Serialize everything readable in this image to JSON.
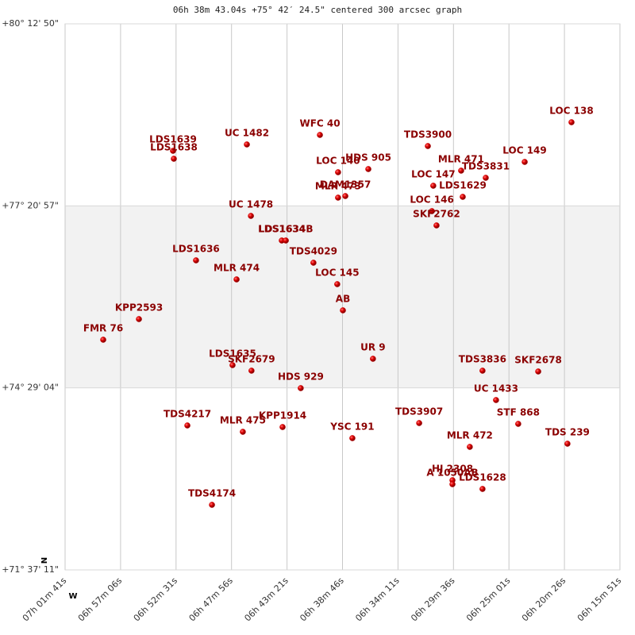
{
  "chart_data": {
    "type": "scatter",
    "title": "06h 38m 43.04s +75° 42′ 24.5\" centered 300 arcsec graph",
    "axis_markers": {
      "x": "W",
      "y": "N"
    },
    "color": "#cc0000",
    "label_color": "#8b0000",
    "grid": true,
    "xlim": [
      25301,
      22551
    ],
    "ylim": [
      257831,
      288770
    ],
    "xticks": [
      {
        "value": 25301,
        "label": "07h 01m 41s"
      },
      {
        "value": 25026,
        "label": "06h 57m 06s"
      },
      {
        "value": 24751,
        "label": "06h 52m 31s"
      },
      {
        "value": 24476,
        "label": "06h 47m 56s"
      },
      {
        "value": 24201,
        "label": "06h 43m 21s"
      },
      {
        "value": 23926,
        "label": "06h 38m 46s"
      },
      {
        "value": 23651,
        "label": "06h 34m 11s"
      },
      {
        "value": 23376,
        "label": "06h 29m 36s"
      },
      {
        "value": 23101,
        "label": "06h 25m 01s"
      },
      {
        "value": 22826,
        "label": "06h 20m 26s"
      },
      {
        "value": 22551,
        "label": "06h 15m 51s"
      }
    ],
    "yticks": [
      {
        "value": 257831,
        "label": "+71° 37' 11\""
      },
      {
        "value": 268144,
        "label": "+74° 29' 04\""
      },
      {
        "value": 278457,
        "label": "+77° 20' 57\""
      },
      {
        "value": 288770,
        "label": "+80° 12' 50\""
      }
    ],
    "point_labels": [
      "LOC 138",
      "WFC  40",
      "UC 1482",
      "LDS1639",
      "LDS1638",
      "TDS3900",
      "LOC 149",
      "HDS 905",
      "MLR 471",
      "LOC 140",
      "TDS3831",
      "LOC 147",
      "DAM1357",
      "MLR 473",
      "LDS1629",
      "LOC 146",
      "UC 1478",
      "SKF2762",
      "LDS1634",
      "LDS1634B",
      "TDS4029",
      "LDS1636",
      "MLR 474",
      "LOC 145",
      "AB",
      "KPP2593",
      "FMR  76",
      "UR   9",
      "LDS1635",
      "SKF2679",
      "TDS3836",
      "SKF2678",
      "HDS 929",
      "UC 1433",
      "TDS4217",
      "TDS3907",
      "STF 868",
      "MLR 475",
      "KPP1914",
      "YSC 191",
      "MLR 472",
      "TDS 239",
      "HJ 2308",
      "A 1050AB",
      "LDS1628",
      "TDS4174"
    ],
    "x": [
      22791,
      24038,
      24400,
      24766,
      24762,
      23503,
      23023,
      23798,
      23338,
      23948,
      23216,
      23476,
      23912,
      23948,
      23330,
      23483,
      24380,
      23460,
      24227,
      24207,
      24070,
      24652,
      24451,
      23952,
      23924,
      24935,
      25112,
      23775,
      24471,
      24377,
      23232,
      22956,
      24133,
      23165,
      24695,
      23546,
      23055,
      24420,
      24223,
      23877,
      23295,
      22811,
      23381,
      23381,
      23232,
      24573
    ],
    "values": [
      283194,
      282474,
      281935,
      281575,
      281125,
      281845,
      280945,
      280540,
      280451,
      280361,
      280046,
      279596,
      279012,
      278922,
      278967,
      278157,
      277887,
      277348,
      276493,
      276493,
      275234,
      275369,
      274290,
      274020,
      272536,
      272041,
      270872,
      269793,
      269433,
      269118,
      269118,
      269073,
      268129,
      267454,
      266015,
      266150,
      266105,
      265655,
      265925,
      265296,
      264801,
      264981,
      262912,
      262687,
      262418,
      261518
    ]
  }
}
